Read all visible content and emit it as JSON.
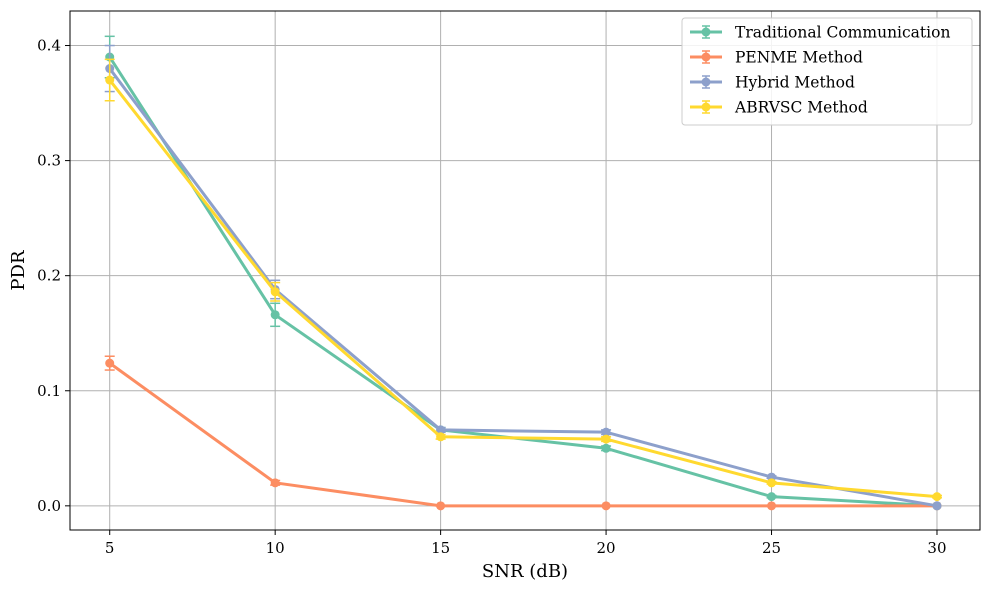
{
  "chart_data": {
    "type": "line",
    "title": "",
    "xlabel": "SNR (dB)",
    "ylabel": "PDR",
    "x": [
      5,
      10,
      15,
      20,
      25,
      30
    ],
    "xlim": [
      3.8,
      31.3
    ],
    "ylim": [
      -0.021,
      0.43
    ],
    "xticks": [
      5,
      10,
      15,
      20,
      25,
      30
    ],
    "yticks": [
      0.0,
      0.1,
      0.2,
      0.3,
      0.4
    ],
    "ytick_labels": [
      "0.0",
      "0.1",
      "0.2",
      "0.3",
      "0.4"
    ],
    "grid": true,
    "legend_position": "top-right",
    "series": [
      {
        "name": "Traditional Communication",
        "color": "#66c2a5",
        "values": [
          0.39,
          0.166,
          0.066,
          0.05,
          0.008,
          0.0
        ],
        "errors": [
          0.018,
          0.01,
          0.002,
          0.002,
          0.001,
          0.0
        ]
      },
      {
        "name": "PENME Method",
        "color": "#fc8d62",
        "values": [
          0.124,
          0.02,
          0.0,
          0.0,
          0.0,
          0.0
        ],
        "errors": [
          0.006,
          0.002,
          0.0,
          0.0,
          0.0,
          0.0
        ]
      },
      {
        "name": "Hybrid Method",
        "color": "#8da0cb",
        "values": [
          0.38,
          0.188,
          0.066,
          0.064,
          0.025,
          0.0
        ],
        "errors": [
          0.02,
          0.008,
          0.002,
          0.002,
          0.001,
          0.0
        ]
      },
      {
        "name": "ABRVSC Method",
        "color": "#ffd92f",
        "values": [
          0.37,
          0.186,
          0.06,
          0.058,
          0.02,
          0.008
        ],
        "errors": [
          0.018,
          0.008,
          0.002,
          0.002,
          0.001,
          0.001
        ]
      }
    ]
  }
}
